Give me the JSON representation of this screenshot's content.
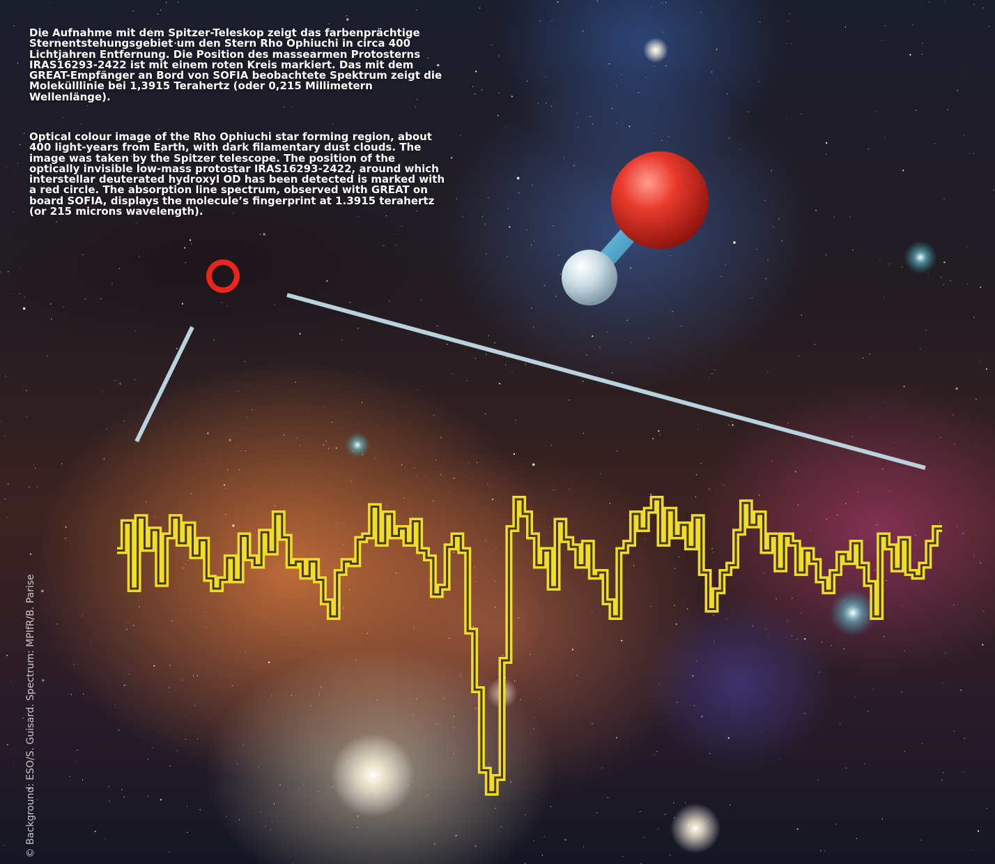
{
  "caption": {
    "german": "Die Aufnahme mit dem Spitzer-Teleskop zeigt das farbenprächtige Sternentstehungsgebiet um den Stern Rho Ophiuchi in circa 400 Lichtjahren Entfernung. Die Position des massearmen Protosterns IRAS16293-2422 ist mit einem roten Kreis markiert. Das mit dem GREAT-Empfänger an Bord von SOFIA beobachtete Spektrum zeigt die Molekülllinie bei 1,3915 Terahertz (oder 0,215 Millimetern Wellenlänge).",
    "english": "Optical colour image of the Rho Ophiuchi star forming region, about 400 light-years from Earth, with dark filamentary dust clouds. The image was taken by the Spitzer telescope. The position of the optically invisible low-mass protostar IRAS16293-2422, around which interstellar deuterated hydroxyl OD has been detected is marked with a red circle. The absorption line spectrum, observed with GREAT on board SOFIA, displays the molecule’s fingerprint at 1.3915 terahertz (or 215 microns wavelength)."
  },
  "credit": "© Background: ESO/S. Guisard. Spectrum: MPIfR/B. Parise",
  "colors": {
    "spectrum": "#f2dc28",
    "marker_circle": "#e8261e",
    "pointer_lines": "#b9d3de",
    "oxygen_atom": "#e0302a",
    "deuterium_atom": "#c9dde6",
    "bond": "#48a8d0"
  },
  "spectrum_levels": [
    10,
    48,
    -42,
    55,
    13,
    38,
    -35,
    30,
    55,
    20,
    45,
    3,
    24,
    -28,
    -42,
    -30,
    0,
    -30,
    30,
    0,
    -10,
    35,
    8,
    60,
    28,
    -10,
    -5,
    -25,
    -5,
    -30,
    -60,
    -80,
    -20,
    -5,
    -8,
    25,
    30,
    70,
    20,
    60,
    30,
    40,
    20,
    50,
    10,
    0,
    -50,
    -40,
    15,
    30,
    10,
    -100,
    -180,
    -290,
    -320,
    -300,
    -140,
    40,
    80,
    60,
    30,
    -10,
    10,
    -40,
    50,
    25,
    15,
    -10,
    20,
    -25,
    -20,
    -60,
    -80,
    10,
    20,
    60,
    40,
    65,
    80,
    20,
    65,
    30,
    45,
    15,
    55,
    -20,
    -70,
    -45,
    -20,
    -10,
    35,
    75,
    45,
    60,
    10,
    30,
    -15,
    30,
    20,
    -20,
    10,
    -5,
    -30,
    -45,
    -20,
    5,
    -5,
    20,
    -10,
    -35,
    -80,
    30,
    15,
    -15,
    25,
    -20,
    -25,
    -10,
    20,
    40
  ]
}
